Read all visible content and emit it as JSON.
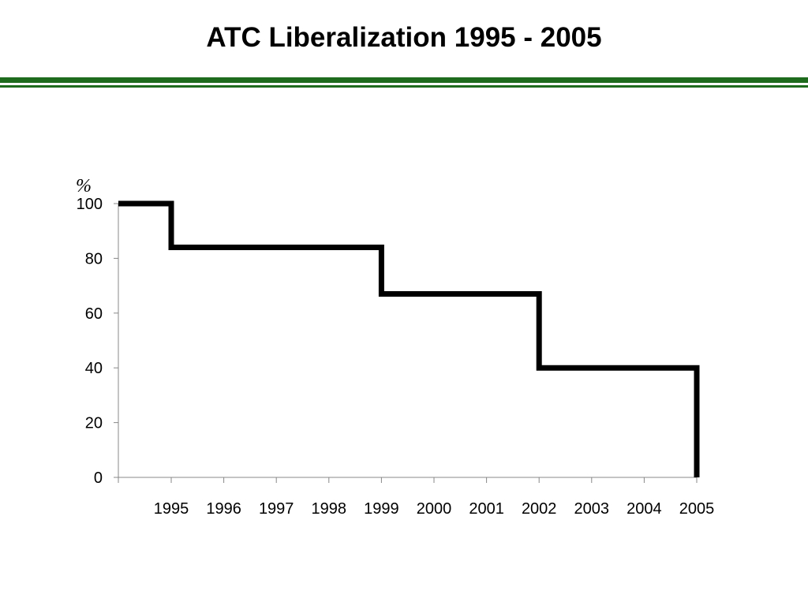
{
  "title": "ATC Liberalization 1995 - 2005",
  "colors": {
    "rule": "#1e6b1e",
    "line": "#000000",
    "axis": "#888888"
  },
  "chart_data": {
    "type": "line",
    "step": true,
    "title": "ATC Liberalization 1995 - 2005",
    "ylabel": "%",
    "xlabel": "",
    "ylim": [
      0,
      100
    ],
    "yticks": [
      0,
      20,
      40,
      60,
      80,
      100
    ],
    "categories": [
      "1995",
      "1996",
      "1997",
      "1998",
      "1999",
      "2000",
      "2001",
      "2002",
      "2003",
      "2004",
      "2005"
    ],
    "series": [
      {
        "points": [
          {
            "x": "start",
            "y": 100
          },
          {
            "x": "1995",
            "y": 100
          },
          {
            "x": "1995",
            "y": 84
          },
          {
            "x": "1999",
            "y": 84
          },
          {
            "x": "1999",
            "y": 67
          },
          {
            "x": "2002",
            "y": 67
          },
          {
            "x": "2002",
            "y": 40
          },
          {
            "x": "2005",
            "y": 40
          },
          {
            "x": "2005",
            "y": 0
          }
        ]
      }
    ],
    "grid": false,
    "legend": "none"
  }
}
